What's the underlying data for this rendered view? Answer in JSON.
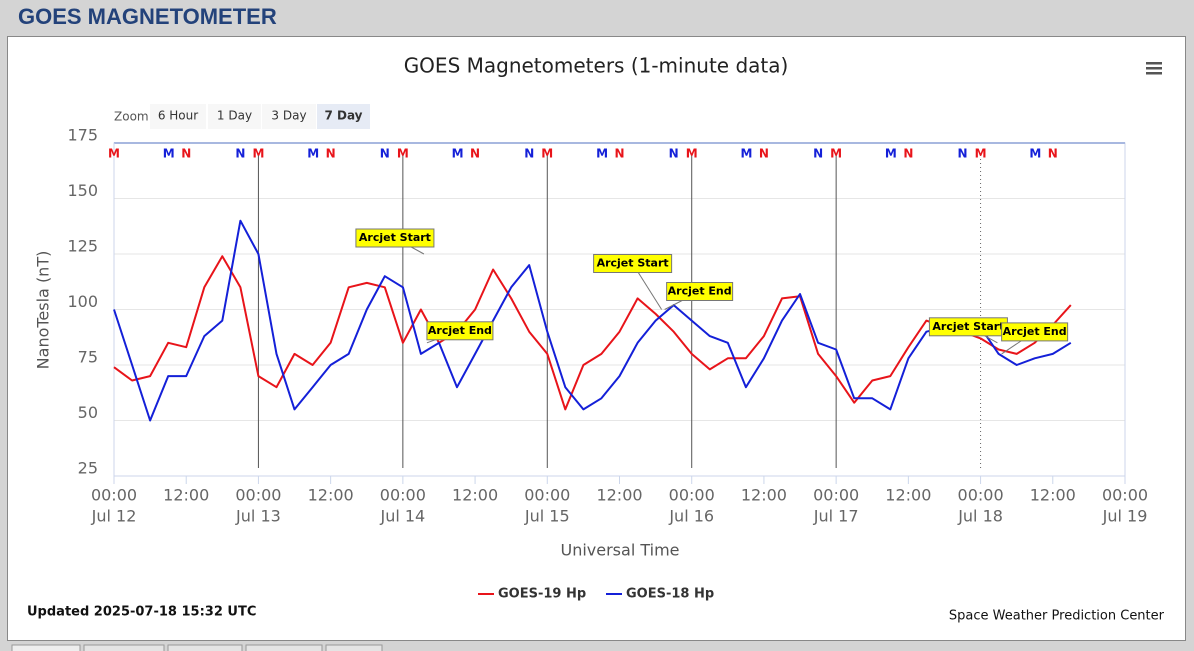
{
  "header": {
    "title": "GOES MAGNETOMETER"
  },
  "zoom": {
    "label": "Zoom",
    "buttons": [
      "6 Hour",
      "1 Day",
      "3 Day",
      "7 Day"
    ],
    "active": 3
  },
  "chart_data": {
    "type": "line",
    "title": "GOES Magnetometers (1-minute data)",
    "xlabel": "Universal Time",
    "ylabel": "NanoTesla (nT)",
    "x": [
      0,
      3,
      6,
      9,
      12,
      15,
      18,
      21,
      24,
      27,
      30,
      33,
      36,
      39,
      42,
      45,
      48,
      51,
      54,
      57,
      60,
      63,
      66,
      69,
      72,
      75,
      78,
      81,
      84,
      87,
      90,
      93,
      96,
      99,
      102,
      105,
      108,
      111,
      114,
      117,
      120,
      123,
      126,
      129,
      132,
      135,
      138,
      141,
      144,
      147,
      150,
      153,
      156,
      159
    ],
    "series": [
      {
        "name": "GOES-19 Hp",
        "color": "#e8141a",
        "values": [
          74,
          68,
          70,
          85,
          83,
          110,
          124,
          110,
          70,
          65,
          80,
          75,
          85,
          110,
          112,
          110,
          85,
          100,
          85,
          90,
          100,
          118,
          105,
          90,
          80,
          55,
          75,
          80,
          90,
          105,
          98,
          90,
          80,
          73,
          78,
          78,
          88,
          105,
          106,
          80,
          70,
          58,
          68,
          70,
          83,
          95,
          92,
          90,
          87,
          82,
          80,
          85,
          93,
          102
        ]
      },
      {
        "name": "GOES-18 Hp",
        "color": "#1420d8",
        "values": [
          100,
          75,
          50,
          70,
          70,
          88,
          95,
          140,
          125,
          80,
          55,
          65,
          75,
          80,
          100,
          115,
          110,
          80,
          85,
          65,
          80,
          95,
          110,
          120,
          90,
          65,
          55,
          60,
          70,
          85,
          95,
          102,
          95,
          88,
          85,
          65,
          78,
          95,
          107,
          85,
          82,
          60,
          60,
          55,
          78,
          90,
          92,
          95,
          92,
          80,
          75,
          78,
          80,
          85
        ]
      }
    ],
    "xlim": [
      0,
      168
    ],
    "xticks": [
      {
        "value": 0,
        "label": "00:00",
        "date": "Jul 12"
      },
      {
        "value": 12,
        "label": "12:00"
      },
      {
        "value": 24,
        "label": "00:00",
        "date": "Jul 13"
      },
      {
        "value": 36,
        "label": "12:00"
      },
      {
        "value": 48,
        "label": "00:00",
        "date": "Jul 14"
      },
      {
        "value": 60,
        "label": "12:00"
      },
      {
        "value": 72,
        "label": "00:00",
        "date": "Jul 15"
      },
      {
        "value": 84,
        "label": "12:00"
      },
      {
        "value": 96,
        "label": "00:00",
        "date": "Jul 16"
      },
      {
        "value": 108,
        "label": "12:00"
      },
      {
        "value": 120,
        "label": "00:00",
        "date": "Jul 17"
      },
      {
        "value": 132,
        "label": "12:00"
      },
      {
        "value": 144,
        "label": "00:00",
        "date": "Jul 18"
      },
      {
        "value": 156,
        "label": "12:00"
      },
      {
        "value": 168,
        "label": "00:00",
        "date": "Jul 19"
      }
    ],
    "ylim": [
      25,
      175
    ],
    "yticks": [
      25,
      50,
      75,
      100,
      125,
      150,
      175
    ],
    "grid": true,
    "markers": [
      {
        "label": "M",
        "color": "#e8141a",
        "x": 0
      },
      {
        "label": "M",
        "color": "#1420d8",
        "x": 9.1
      },
      {
        "label": "N",
        "color": "#e8141a",
        "x": 12
      },
      {
        "label": "N",
        "color": "#1420d8",
        "x": 21
      },
      {
        "label": "M",
        "color": "#e8141a",
        "x": 24,
        "line": "solid"
      },
      {
        "label": "M",
        "color": "#1420d8",
        "x": 33.1
      },
      {
        "label": "N",
        "color": "#e8141a",
        "x": 36
      },
      {
        "label": "N",
        "color": "#1420d8",
        "x": 45
      },
      {
        "label": "M",
        "color": "#e8141a",
        "x": 48,
        "line": "solid"
      },
      {
        "label": "M",
        "color": "#1420d8",
        "x": 57.1
      },
      {
        "label": "N",
        "color": "#e8141a",
        "x": 60
      },
      {
        "label": "N",
        "color": "#1420d8",
        "x": 69
      },
      {
        "label": "M",
        "color": "#e8141a",
        "x": 72,
        "line": "solid"
      },
      {
        "label": "M",
        "color": "#1420d8",
        "x": 81.1
      },
      {
        "label": "N",
        "color": "#e8141a",
        "x": 84
      },
      {
        "label": "N",
        "color": "#1420d8",
        "x": 93
      },
      {
        "label": "M",
        "color": "#e8141a",
        "x": 96,
        "line": "solid"
      },
      {
        "label": "M",
        "color": "#1420d8",
        "x": 105.1
      },
      {
        "label": "N",
        "color": "#e8141a",
        "x": 108
      },
      {
        "label": "N",
        "color": "#1420d8",
        "x": 117
      },
      {
        "label": "M",
        "color": "#e8141a",
        "x": 120,
        "line": "solid"
      },
      {
        "label": "M",
        "color": "#1420d8",
        "x": 129.1
      },
      {
        "label": "N",
        "color": "#e8141a",
        "x": 132
      },
      {
        "label": "N",
        "color": "#1420d8",
        "x": 141
      },
      {
        "label": "M",
        "color": "#e8141a",
        "x": 144,
        "line": "dotted"
      },
      {
        "label": "M",
        "color": "#1420d8",
        "x": 153.1
      },
      {
        "label": "N",
        "color": "#e8141a",
        "x": 156
      }
    ],
    "annotations": [
      {
        "text": "Arcjet Start",
        "x": 51.5,
        "y": 125
      },
      {
        "text": "Arcjet End",
        "x": 52,
        "y": 85
      },
      {
        "text": "Arcjet Start",
        "x": 91,
        "y": 100
      },
      {
        "text": "Arcjet End",
        "x": 91.5,
        "y": 100
      },
      {
        "text": "Arcjet Start",
        "x": 146.8,
        "y": 85
      },
      {
        "text": "Arcjet End",
        "x": 147.5,
        "y": 80
      }
    ],
    "legend": "bottom"
  },
  "footer": {
    "updated": "Updated 2025-07-18 15:32 UTC",
    "credit": "Space Weather Prediction Center"
  }
}
